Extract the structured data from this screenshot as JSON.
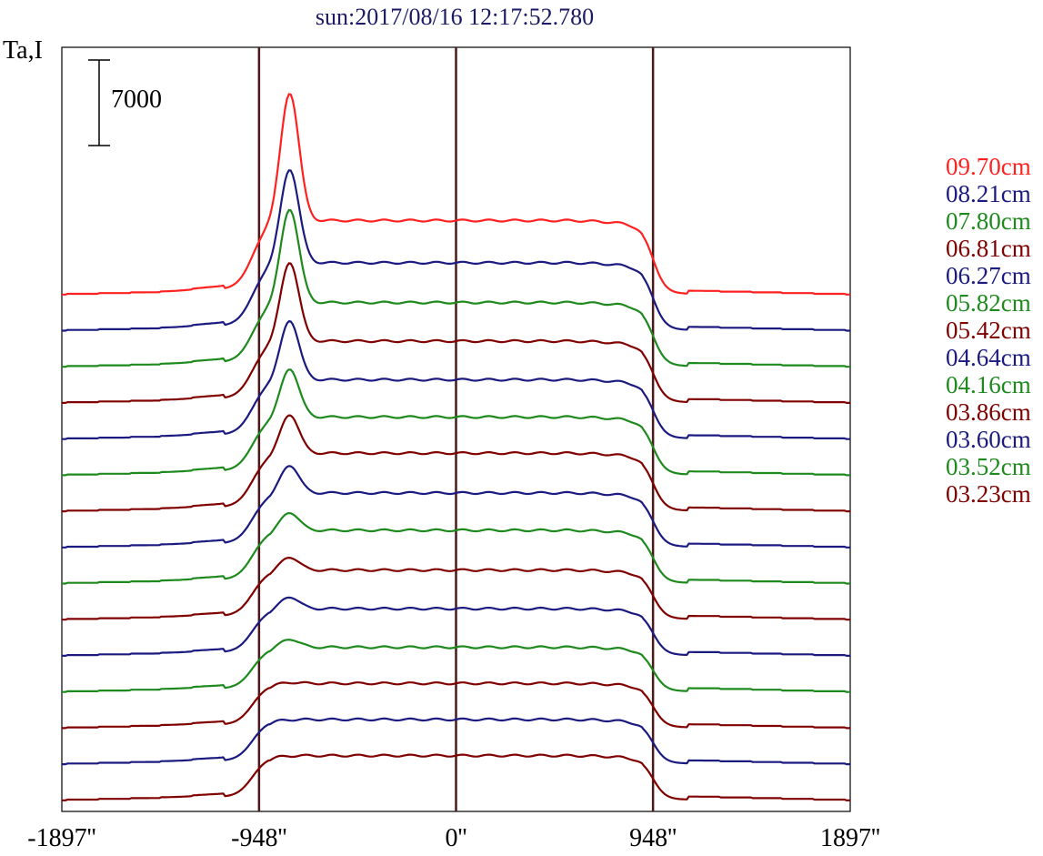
{
  "chart_data": {
    "type": "line",
    "title": "sun:2017/08/16 12:17:52.780",
    "ylabel": "Ta,I",
    "scale_bar_label": "7000",
    "scale_bar_value": 7000,
    "xlim": [
      -1897,
      1897
    ],
    "x_tick_labels": [
      "-1897''",
      "-948''",
      "0''",
      "948''",
      "1897''"
    ],
    "x_ticks": [
      -1897,
      -948,
      0,
      948,
      1897
    ],
    "vertical_lines": [
      -948,
      0,
      948
    ],
    "grid": false,
    "legend_position": "right",
    "peak_x": -800,
    "series": [
      {
        "name": "09.70cm",
        "color": "#ff2020",
        "offset_rank": 12,
        "peak": 16500,
        "disk": 6000
      },
      {
        "name": "08.21cm",
        "color": "#1a1a80",
        "offset_rank": 11,
        "peak": 13200,
        "disk": 5500
      },
      {
        "name": "07.80cm",
        "color": "#1e8a1e",
        "offset_rank": 10,
        "peak": 12900,
        "disk": 5200
      },
      {
        "name": "06.81cm",
        "color": "#800000",
        "offset_rank": 9,
        "peak": 11500,
        "disk": 5000
      },
      {
        "name": "06.27cm",
        "color": "#1a1a80",
        "offset_rank": 8,
        "peak": 9700,
        "disk": 4800
      },
      {
        "name": "05.82cm",
        "color": "#1e8a1e",
        "offset_rank": 7,
        "peak": 8700,
        "disk": 4700
      },
      {
        "name": "05.42cm",
        "color": "#800000",
        "offset_rank": 6,
        "peak": 7900,
        "disk": 4700
      },
      {
        "name": "04.64cm",
        "color": "#1a1a80",
        "offset_rank": 5,
        "peak": 6700,
        "disk": 4400
      },
      {
        "name": "04.16cm",
        "color": "#1e8a1e",
        "offset_rank": 4,
        "peak": 5800,
        "disk": 4300
      },
      {
        "name": "03.86cm",
        "color": "#800000",
        "offset_rank": 3,
        "peak": 5100,
        "disk": 4000
      },
      {
        "name": "03.60cm",
        "color": "#1a1a80",
        "offset_rank": 2,
        "peak": 4800,
        "disk": 3800
      },
      {
        "name": "03.52cm",
        "color": "#1e8a1e",
        "offset_rank": 1,
        "peak": 4300,
        "disk": 3600
      },
      {
        "name": "03.23cm",
        "color": "#800000",
        "offset_rank": 0,
        "peak": 3700,
        "disk": 3600
      }
    ],
    "extra_unlabeled_traces": [
      {
        "color": "#1a1a80"
      },
      {
        "color": "#800000"
      }
    ],
    "colors": {
      "frame": "#000000",
      "vertical_line": "#4a1a1a",
      "title": "#1a1a66"
    }
  }
}
